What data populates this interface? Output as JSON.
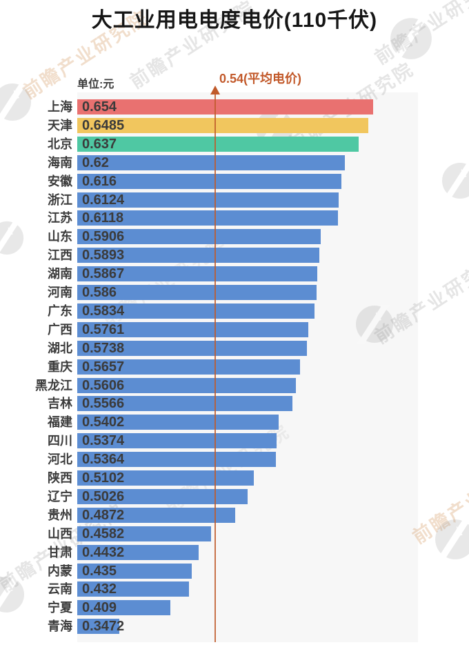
{
  "title": "大工业用电电度电价(110千伏)",
  "unit_label": "单位:元",
  "average_annotation": {
    "text": "0.54(平均电价)",
    "value": 0.54
  },
  "watermark": {
    "text": "前瞻产业研究院"
  },
  "colors": {
    "page_background": "#ffffff",
    "plot_background": "#f7f7f7",
    "average_line": "#c05a2a",
    "annotation_text": "#c2592a",
    "label_text": "#3c3c3c",
    "value_text": "#3b3b3b",
    "bar_red": "#e97170",
    "bar_yellow": "#f1c65e",
    "bar_green": "#4fc8a3",
    "bar_blue": "#5c8dd2"
  },
  "chart_data": {
    "type": "bar",
    "orientation": "horizontal",
    "title": "大工业用电电度电价(110千伏)",
    "unit": "元",
    "average_value": 0.54,
    "average_label": "0.54(平均电价)",
    "x_axis_origin": 0.2967,
    "xlim": [
      0.2967,
      0.708
    ],
    "grid": false,
    "legend": false,
    "categories": [
      "上海",
      "天津",
      "北京",
      "海南",
      "安徽",
      "浙江",
      "江苏",
      "山东",
      "江西",
      "湖南",
      "河南",
      "广东",
      "广西",
      "湖北",
      "重庆",
      "黑龙江",
      "吉林",
      "福建",
      "四川",
      "河北",
      "陕西",
      "辽宁",
      "贵州",
      "山西",
      "甘肃",
      "内蒙",
      "云南",
      "宁夏",
      "青海"
    ],
    "values": [
      0.654,
      0.6485,
      0.637,
      0.62,
      0.616,
      0.6124,
      0.6118,
      0.5906,
      0.5893,
      0.5867,
      0.586,
      0.5834,
      0.5761,
      0.5738,
      0.5657,
      0.5606,
      0.5566,
      0.5402,
      0.5374,
      0.5364,
      0.5102,
      0.5026,
      0.4872,
      0.4582,
      0.4432,
      0.435,
      0.432,
      0.409,
      0.3472
    ],
    "value_labels": [
      "0.654",
      "0.6485",
      "0.637",
      "0.62",
      "0.616",
      "0.6124",
      "0.6118",
      "0.5906",
      "0.5893",
      "0.5867",
      "0.586",
      "0.5834",
      "0.5761",
      "0.5738",
      "0.5657",
      "0.5606",
      "0.5566",
      "0.5402",
      "0.5374",
      "0.5364",
      "0.5102",
      "0.5026",
      "0.4872",
      "0.4582",
      "0.4432",
      "0.435",
      "0.432",
      "0.409",
      "0.3472"
    ],
    "bar_colors": [
      "#e97170",
      "#f1c65e",
      "#4fc8a3",
      "#5c8dd2",
      "#5c8dd2",
      "#5c8dd2",
      "#5c8dd2",
      "#5c8dd2",
      "#5c8dd2",
      "#5c8dd2",
      "#5c8dd2",
      "#5c8dd2",
      "#5c8dd2",
      "#5c8dd2",
      "#5c8dd2",
      "#5c8dd2",
      "#5c8dd2",
      "#5c8dd2",
      "#5c8dd2",
      "#5c8dd2",
      "#5c8dd2",
      "#5c8dd2",
      "#5c8dd2",
      "#5c8dd2",
      "#5c8dd2",
      "#5c8dd2",
      "#5c8dd2",
      "#5c8dd2",
      "#5c8dd2"
    ]
  }
}
